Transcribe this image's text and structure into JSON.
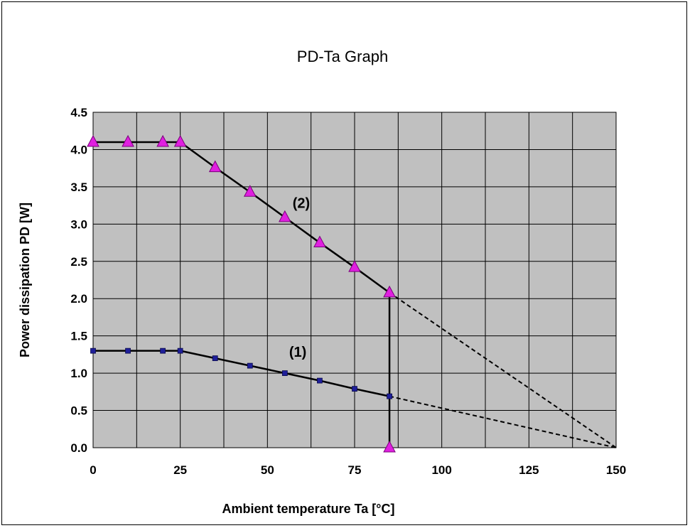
{
  "chart_data": {
    "type": "line",
    "title": "PD-Ta Graph",
    "xlabel": "Ambient temperature Ta [°C]",
    "ylabel": "Power dissipation PD [W]",
    "xlim": [
      0,
      150
    ],
    "ylim": [
      0,
      4.5
    ],
    "xticks": [
      "0",
      "25",
      "50",
      "75",
      "100",
      "125",
      "150"
    ],
    "yticks": [
      "0.0",
      "0.5",
      "1.0",
      "1.5",
      "2.0",
      "2.5",
      "3.0",
      "3.5",
      "4.0",
      "4.5"
    ],
    "x_tick_values": [
      0,
      25,
      50,
      75,
      100,
      125,
      150
    ],
    "y_tick_values": [
      0,
      0.5,
      1.0,
      1.5,
      2.0,
      2.5,
      3.0,
      3.5,
      4.0,
      4.5
    ],
    "x_minor_grid_values": [
      0,
      12.5,
      25,
      37.5,
      50,
      62.5,
      75,
      87.5,
      100,
      112.5,
      125,
      137.5,
      150
    ],
    "grid": true,
    "plot_background": "#c0c0c0",
    "series": [
      {
        "label": "(1)",
        "marker": "square",
        "color": "#1f1f9a",
        "x": [
          0,
          10,
          20,
          25,
          35,
          45,
          55,
          65,
          75,
          85
        ],
        "y": [
          1.3,
          1.3,
          1.3,
          1.3,
          1.2,
          1.1,
          1.0,
          0.9,
          0.79,
          0.69
        ],
        "extension_dashed": {
          "x": [
            85,
            150
          ],
          "y": [
            0.69,
            0.0
          ]
        }
      },
      {
        "label": "(2)",
        "marker": "triangle",
        "color": "#e020e0",
        "x": [
          0,
          10,
          20,
          25,
          35,
          45,
          55,
          65,
          75,
          85,
          85
        ],
        "y": [
          4.1,
          4.1,
          4.1,
          4.1,
          3.76,
          3.43,
          3.09,
          2.75,
          2.42,
          2.08,
          0.0
        ],
        "extension_dashed": {
          "x": [
            85,
            150
          ],
          "y": [
            2.08,
            0.0
          ]
        }
      }
    ],
    "annotations": [
      {
        "text": "(1)",
        "x": 55,
        "y": 1.22
      },
      {
        "text": "(2)",
        "x": 56,
        "y": 3.22
      }
    ]
  }
}
